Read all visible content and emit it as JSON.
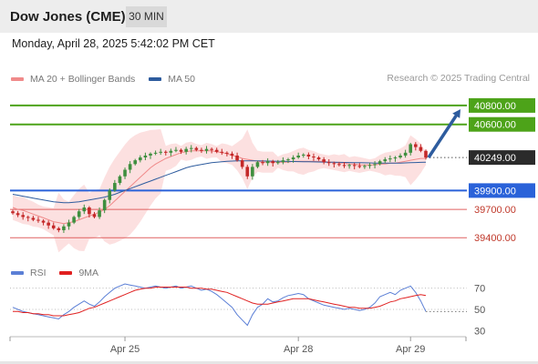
{
  "header": {
    "symbol": "Dow Jones (CME)",
    "timeframe": "30 MIN"
  },
  "datetime": "Monday, April 28, 2025 5:42:02 PM CET",
  "legend": {
    "main": [
      {
        "label": "MA 20 + Bollinger Bands",
        "color": "#f08a8a"
      },
      {
        "label": "MA 50",
        "color": "#2e5c9e"
      }
    ],
    "indicator": [
      {
        "label": "RSI",
        "color": "#5b7fd6"
      },
      {
        "label": "9MA",
        "color": "#e02020"
      }
    ]
  },
  "credit": "Research © 2025 Trading Central",
  "colors": {
    "resistance": "#4da319",
    "support": "#2a62d9",
    "target_level": "#e06060",
    "price": "#2b2b2b",
    "arrow": "#2e5c9e",
    "bull": "#3f8f3f",
    "bear": "#c42828"
  },
  "chart_data": {
    "type": "line",
    "x_labels": [
      "Apr 25",
      "Apr 28",
      "Apr 29"
    ],
    "price_ylim": [
      39200,
      41050
    ],
    "levels": [
      {
        "value": 40800,
        "label": "40800.00",
        "kind": "resistance"
      },
      {
        "value": 40600,
        "label": "40600.00",
        "kind": "resistance"
      },
      {
        "value": 40249,
        "label": "40249.00",
        "kind": "price"
      },
      {
        "value": 39900,
        "label": "39900.00",
        "kind": "support"
      },
      {
        "value": 39700,
        "label": "39700.00",
        "kind": "target"
      },
      {
        "value": 39400,
        "label": "39400.00",
        "kind": "target"
      }
    ],
    "arrow": {
      "from": 40249,
      "to": 40800
    },
    "close": [
      39660,
      39640,
      39620,
      39610,
      39590,
      39580,
      39560,
      39530,
      39500,
      39480,
      39520,
      39560,
      39620,
      39680,
      39720,
      39650,
      39620,
      39690,
      39800,
      39900,
      39980,
      40050,
      40120,
      40180,
      40220,
      40250,
      40270,
      40290,
      40300,
      40310,
      40300,
      40320,
      40330,
      40310,
      40340,
      40350,
      40330,
      40320,
      40340,
      40330,
      40310,
      40300,
      40290,
      40270,
      40220,
      40150,
      40050,
      40150,
      40200,
      40190,
      40210,
      40190,
      40200,
      40220,
      40230,
      40250,
      40270,
      40280,
      40260,
      40250,
      40230,
      40200,
      40190,
      40180,
      40170,
      40160,
      40170,
      40160,
      40150,
      40160,
      40170,
      40180,
      40210,
      40230,
      40240,
      40250,
      40270,
      40300,
      40390,
      40360,
      40320,
      40249
    ],
    "ma20": [
      39720,
      39700,
      39690,
      39670,
      39650,
      39630,
      39610,
      39590,
      39570,
      39560,
      39550,
      39560,
      39570,
      39590,
      39610,
      39630,
      39650,
      39670,
      39700,
      39740,
      39790,
      39840,
      39890,
      39940,
      39990,
      40040,
      40090,
      40140,
      40180,
      40210,
      40240,
      40260,
      40280,
      40300,
      40310,
      40320,
      40320,
      40320,
      40320,
      40320,
      40310,
      40300,
      40290,
      40270,
      40260,
      40240,
      40230,
      40220,
      40210,
      40200,
      40200,
      40200,
      40200,
      40200,
      40200,
      40210,
      40210,
      40210,
      40210,
      40210,
      40210,
      40210,
      40200,
      40200,
      40190,
      40190,
      40180,
      40180,
      40170,
      40170,
      40170,
      40170,
      40180,
      40180,
      40190,
      40190,
      40200,
      40210,
      40220,
      40230,
      40240,
      40240
    ],
    "ma50": [
      39860,
      39850,
      39840,
      39830,
      39820,
      39810,
      39800,
      39790,
      39780,
      39775,
      39770,
      39770,
      39775,
      39780,
      39790,
      39800,
      39810,
      39820,
      39830,
      39845,
      39860,
      39880,
      39900,
      39920,
      39940,
      39960,
      39980,
      40000,
      40020,
      40040,
      40060,
      40080,
      40100,
      40120,
      40140,
      40155,
      40165,
      40175,
      40185,
      40195,
      40200,
      40205,
      40210,
      40212,
      40214,
      40215,
      40215,
      40215,
      40214,
      40213,
      40212,
      40211,
      40210,
      40209,
      40208,
      40207,
      40206,
      40205,
      40204,
      40203,
      40202,
      40201,
      40200,
      40199,
      40198,
      40197,
      40196,
      40195,
      40194,
      40193,
      40192,
      40191,
      40190,
      40190,
      40190,
      40190,
      40191,
      40192,
      40194,
      40196,
      40198,
      40200
    ],
    "rsi_ylim": [
      20,
      80
    ],
    "rsi_ticks": [
      70,
      50,
      30
    ],
    "rsi": [
      52,
      50,
      48,
      47,
      46,
      45,
      44,
      43,
      42,
      41,
      45,
      48,
      52,
      55,
      58,
      55,
      53,
      57,
      62,
      66,
      70,
      72,
      74,
      73,
      72,
      71,
      70,
      71,
      72,
      71,
      70,
      71,
      72,
      70,
      71,
      72,
      70,
      68,
      69,
      67,
      64,
      60,
      56,
      52,
      45,
      40,
      35,
      45,
      52,
      55,
      60,
      57,
      58,
      61,
      63,
      64,
      65,
      64,
      60,
      58,
      56,
      54,
      53,
      52,
      51,
      50,
      51,
      50,
      49,
      50,
      52,
      56,
      62,
      64,
      66,
      64,
      68,
      70,
      72,
      66,
      58,
      48
    ],
    "rsi_ma": [
      48,
      48,
      47,
      47,
      46,
      46,
      45,
      45,
      44,
      44,
      44,
      45,
      46,
      47,
      49,
      51,
      52,
      54,
      56,
      58,
      60,
      62,
      64,
      66,
      68,
      69,
      70,
      70,
      71,
      71,
      71,
      71,
      71,
      71,
      71,
      70,
      70,
      70,
      69,
      69,
      68,
      67,
      66,
      64,
      62,
      60,
      58,
      56,
      55,
      55,
      55,
      56,
      57,
      58,
      59,
      60,
      60,
      60,
      60,
      59,
      58,
      57,
      56,
      55,
      54,
      53,
      52,
      52,
      51,
      51,
      51,
      52,
      53,
      55,
      57,
      58,
      60,
      61,
      62,
      63,
      64,
      63
    ]
  }
}
